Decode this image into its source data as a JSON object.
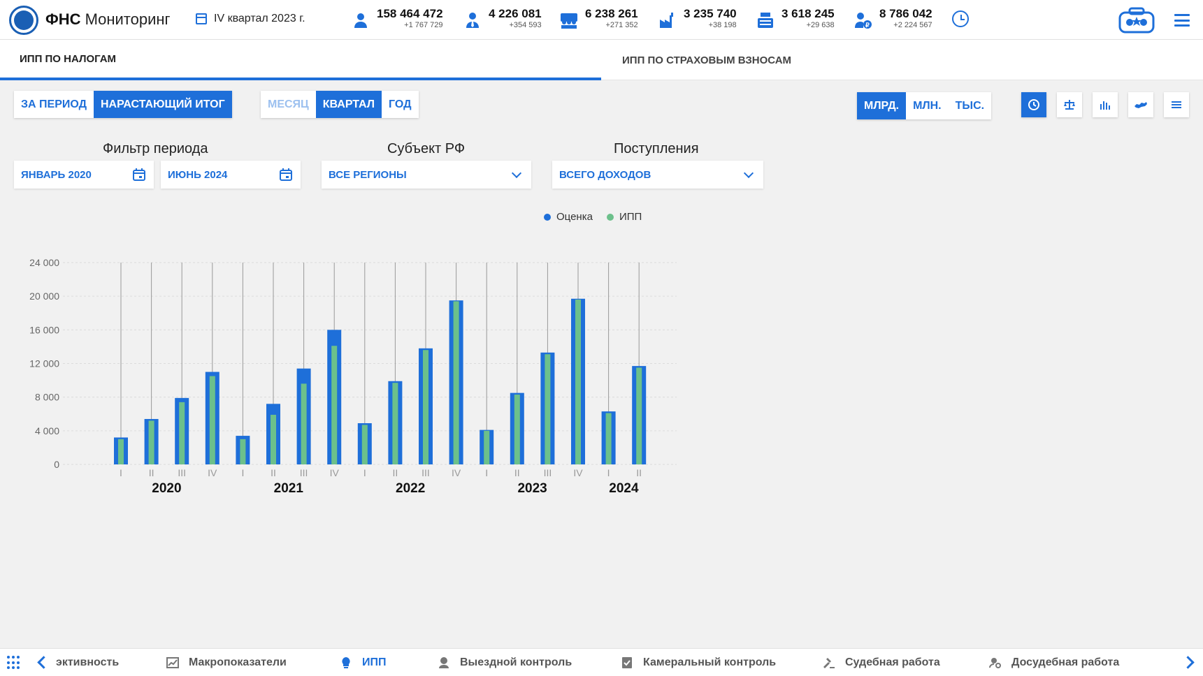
{
  "header": {
    "brand_bold": "ФНС",
    "brand_light": "Мониторинг",
    "period": "IV квартал 2023 г.",
    "stats": [
      {
        "icon": "person-icon",
        "value": "158 464 472",
        "delta": "+1 767 729"
      },
      {
        "icon": "person-tie-icon",
        "value": "4 226 081",
        "delta": "+354 593"
      },
      {
        "icon": "group-icon",
        "value": "6 238 261",
        "delta": "+271 352"
      },
      {
        "icon": "factory-icon",
        "value": "3 235 740",
        "delta": "+38 198"
      },
      {
        "icon": "cash-register-icon",
        "value": "3 618 245",
        "delta": "+29 638"
      },
      {
        "icon": "person-ruble-icon",
        "value": "8 786 042",
        "delta": "+2 224 567"
      }
    ]
  },
  "tabs": [
    {
      "label": "ИПП ПО НАЛОГАМ",
      "active": true
    },
    {
      "label": "ИПП ПО СТРАХОВЫМ ВЗНОСАМ",
      "active": false
    }
  ],
  "mode": {
    "period_label": "ЗА ПЕРИОД",
    "cumulative_label": "НАРАСТАЮЩИЙ ИТОГ",
    "active": "cumulative"
  },
  "granularity": {
    "month_label": "МЕСЯЦ",
    "quarter_label": "КВАРТАЛ",
    "year_label": "ГОД",
    "active": "quarter"
  },
  "units": {
    "bln_label": "МЛРД.",
    "mln_label": "МЛН.",
    "ths_label": "ТЫС.",
    "active": "bln"
  },
  "filters": {
    "period_label": "Фильтр периода",
    "period_from": "ЯНВАРЬ 2020",
    "period_to": "ИЮНЬ 2024",
    "region_label": "Субъект РФ",
    "region_value": "ВСЕ РЕГИОНЫ",
    "income_label": "Поступления",
    "income_value": "ВСЕГО ДОХОДОВ"
  },
  "colors": {
    "accent": "#1e6fd9",
    "estimate": "#1e6fd9",
    "ipp": "#6cc08b"
  },
  "chart_data": {
    "type": "bar",
    "legend": [
      "Оценка",
      "ИПП"
    ],
    "legend_position": "top",
    "grid": true,
    "ylim": [
      0,
      24000
    ],
    "yticks": [
      "0",
      "4 000",
      "8 000",
      "12 000",
      "16 000",
      "20 000",
      "24 000"
    ],
    "categories": [
      "I",
      "II",
      "III",
      "IV",
      "I",
      "II",
      "III",
      "IV",
      "I",
      "II",
      "III",
      "IV",
      "I",
      "II",
      "III",
      "IV",
      "I",
      "II"
    ],
    "years": [
      {
        "label": "2020",
        "from": 0,
        "to": 3
      },
      {
        "label": "2021",
        "from": 4,
        "to": 7
      },
      {
        "label": "2022",
        "from": 8,
        "to": 11
      },
      {
        "label": "2023",
        "from": 12,
        "to": 15
      },
      {
        "label": "2024",
        "from": 16,
        "to": 17
      }
    ],
    "series": [
      {
        "name": "Оценка",
        "values": [
          3200,
          5400,
          7900,
          11000,
          3400,
          7200,
          11400,
          16000,
          4900,
          9900,
          13800,
          19500,
          4100,
          8500,
          13300,
          19700,
          6300,
          11700
        ]
      },
      {
        "name": "ИПП",
        "values": [
          3000,
          5200,
          7400,
          10500,
          3000,
          5900,
          9600,
          14100,
          4700,
          9700,
          13600,
          19400,
          4000,
          8300,
          13100,
          19600,
          6100,
          11500
        ]
      }
    ]
  },
  "bottom_nav": [
    {
      "label": "эктивность",
      "icon": "chart-up-icon",
      "active": false
    },
    {
      "label": "Макропоказатели",
      "icon": "line-chart-icon",
      "active": false
    },
    {
      "label": "ИПП",
      "icon": "lightbulb-icon",
      "active": true
    },
    {
      "label": "Выездной контроль",
      "icon": "location-person-icon",
      "active": false
    },
    {
      "label": "Камеральный контроль",
      "icon": "checklist-icon",
      "active": false
    },
    {
      "label": "Судебная работа",
      "icon": "gavel-icon",
      "active": false
    },
    {
      "label": "Досудебная работа",
      "icon": "person-search-icon",
      "active": false
    }
  ]
}
